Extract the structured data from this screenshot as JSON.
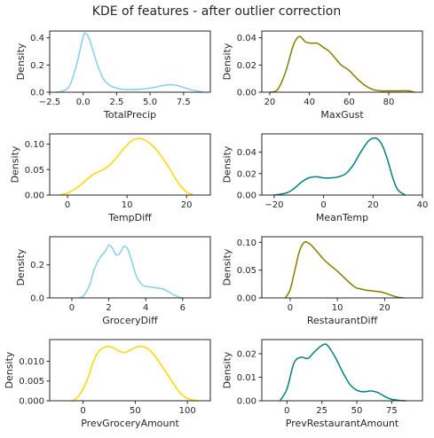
{
  "title": "KDE of features - after outlier correction",
  "colors": {
    "skyblue": "#87ceeb",
    "olive": "#808000",
    "gold": "#ffd700",
    "teal": "#008080",
    "axis": "#262626"
  },
  "chart_data": [
    {
      "type": "line",
      "xlabel": "TotalPrecip",
      "ylabel": "Density",
      "color": "#87ceeb",
      "xlim": [
        -2.5,
        9.5
      ],
      "ylim": [
        0,
        0.45
      ],
      "xticks": [
        -2.5,
        0.0,
        2.5,
        5.0,
        7.5
      ],
      "xticklabels": [
        "−2.5",
        "0.0",
        "2.5",
        "5.0",
        "7.5"
      ],
      "yticks": [
        0,
        0.2,
        0.4
      ],
      "yticklabels": [
        "0.0",
        "0.2",
        "0.4"
      ],
      "x": [
        -2.0,
        -1.5,
        -1.0,
        -0.5,
        0.0,
        0.2,
        0.5,
        1.0,
        1.5,
        2.0,
        2.5,
        3.0,
        4.0,
        5.0,
        6.0,
        6.5,
        7.0,
        8.0,
        9.0
      ],
      "y": [
        0.0,
        0.01,
        0.05,
        0.2,
        0.41,
        0.43,
        0.38,
        0.22,
        0.1,
        0.05,
        0.03,
        0.02,
        0.02,
        0.03,
        0.05,
        0.055,
        0.05,
        0.02,
        0.0
      ]
    },
    {
      "type": "line",
      "xlabel": "MaxGust",
      "ylabel": "Density",
      "color": "#808000",
      "xlim": [
        16,
        97
      ],
      "ylim": [
        0,
        0.045
      ],
      "xticks": [
        20,
        40,
        60,
        80
      ],
      "xticklabels": [
        "20",
        "40",
        "60",
        "80"
      ],
      "yticks": [
        0,
        0.02,
        0.04
      ],
      "yticklabels": [
        "0.00",
        "0.02",
        "0.04"
      ],
      "x": [
        20,
        24,
        28,
        32,
        35,
        38,
        41,
        44,
        47,
        50,
        53,
        56,
        60,
        64,
        68,
        72,
        76,
        80,
        85,
        90,
        93
      ],
      "y": [
        0.0,
        0.002,
        0.015,
        0.035,
        0.041,
        0.037,
        0.036,
        0.036,
        0.033,
        0.03,
        0.025,
        0.02,
        0.016,
        0.01,
        0.005,
        0.002,
        0.001,
        0.001,
        0.001,
        0.001,
        0.0
      ]
    },
    {
      "type": "line",
      "xlabel": "TempDiff",
      "ylabel": "Density",
      "color": "#ffd700",
      "xlim": [
        -3,
        24
      ],
      "ylim": [
        0,
        0.12
      ],
      "xticks": [
        0,
        10,
        20
      ],
      "xticklabels": [
        "0",
        "10",
        "20"
      ],
      "yticks": [
        0,
        0.05,
        0.1
      ],
      "yticklabels": [
        "0.00",
        "0.05",
        "0.10"
      ],
      "x": [
        -1,
        0,
        1,
        2,
        3,
        4,
        5,
        6,
        7,
        8,
        9,
        10,
        11,
        12,
        13,
        14,
        15,
        16,
        17,
        18,
        19,
        20,
        21
      ],
      "y": [
        0.001,
        0.004,
        0.01,
        0.018,
        0.028,
        0.038,
        0.045,
        0.05,
        0.058,
        0.07,
        0.085,
        0.098,
        0.108,
        0.111,
        0.108,
        0.1,
        0.088,
        0.072,
        0.055,
        0.035,
        0.018,
        0.006,
        0.001
      ]
    },
    {
      "type": "line",
      "xlabel": "MeanTemp",
      "ylabel": "Density",
      "color": "#008080",
      "xlim": [
        -25,
        40
      ],
      "ylim": [
        0,
        0.057
      ],
      "xticks": [
        -20,
        0,
        20,
        40
      ],
      "xticklabels": [
        "−20",
        "0",
        "20",
        "40"
      ],
      "yticks": [
        0,
        0.02,
        0.04
      ],
      "yticklabels": [
        "0.00",
        "0.02",
        "0.04"
      ],
      "x": [
        -20,
        -15,
        -12,
        -9,
        -6,
        -3,
        0,
        3,
        6,
        9,
        12,
        15,
        18,
        20,
        22,
        24,
        26,
        28,
        30,
        33
      ],
      "y": [
        0.0,
        0.002,
        0.006,
        0.012,
        0.016,
        0.017,
        0.016,
        0.016,
        0.017,
        0.02,
        0.028,
        0.04,
        0.05,
        0.053,
        0.052,
        0.045,
        0.032,
        0.016,
        0.005,
        0.0
      ]
    },
    {
      "type": "line",
      "xlabel": "GroceryDiff",
      "ylabel": "Density",
      "color": "#87ceeb",
      "xlim": [
        -1.2,
        7.5
      ],
      "ylim": [
        0,
        0.37
      ],
      "xticks": [
        0,
        2,
        4,
        6
      ],
      "xticklabels": [
        "0",
        "2",
        "4",
        "6"
      ],
      "yticks": [
        0,
        0.2
      ],
      "yticklabels": [
        "0.0",
        "0.2"
      ],
      "x": [
        0.4,
        0.6,
        0.8,
        1.0,
        1.2,
        1.5,
        1.8,
        2.0,
        2.2,
        2.4,
        2.6,
        2.8,
        3.0,
        3.2,
        3.5,
        3.8,
        4.0,
        4.3,
        4.6,
        4.9,
        5.2,
        5.5,
        5.8,
        6.0
      ],
      "y": [
        0.0,
        0.01,
        0.04,
        0.09,
        0.17,
        0.24,
        0.28,
        0.32,
        0.3,
        0.26,
        0.27,
        0.31,
        0.3,
        0.24,
        0.13,
        0.08,
        0.07,
        0.065,
        0.06,
        0.055,
        0.04,
        0.02,
        0.005,
        0.0
      ]
    },
    {
      "type": "line",
      "xlabel": "RestaurantDiff",
      "ylabel": "Density",
      "color": "#808000",
      "xlim": [
        -6,
        28
      ],
      "ylim": [
        0,
        0.11
      ],
      "xticks": [
        0,
        10,
        20
      ],
      "xticklabels": [
        "0",
        "10",
        "20"
      ],
      "yticks": [
        0,
        0.05,
        0.1
      ],
      "yticklabels": [
        "0.00",
        "0.05",
        "0.10"
      ],
      "x": [
        -1,
        0,
        1,
        2,
        3,
        4,
        5,
        6,
        7,
        8,
        9,
        10,
        11,
        12,
        13,
        14,
        15,
        16,
        17,
        18,
        19,
        20,
        21,
        22,
        23,
        24
      ],
      "y": [
        0.0,
        0.015,
        0.05,
        0.085,
        0.1,
        0.098,
        0.09,
        0.08,
        0.07,
        0.062,
        0.055,
        0.048,
        0.04,
        0.032,
        0.024,
        0.018,
        0.016,
        0.014,
        0.013,
        0.012,
        0.011,
        0.009,
        0.006,
        0.003,
        0.001,
        0.0
      ]
    },
    {
      "type": "line",
      "xlabel": "PrevGroceryAmount",
      "ylabel": "Density",
      "color": "#ffd700",
      "xlim": [
        -32,
        122
      ],
      "ylim": [
        0,
        0.0155
      ],
      "xticks": [
        0,
        50,
        100
      ],
      "xticklabels": [
        "0",
        "50",
        "100"
      ],
      "yticks": [
        0,
        0.005,
        0.01
      ],
      "yticklabels": [
        "0.000",
        "0.005",
        "0.010"
      ],
      "x": [
        -10,
        -5,
        0,
        5,
        10,
        15,
        20,
        25,
        30,
        35,
        40,
        45,
        50,
        55,
        60,
        65,
        70,
        75,
        80,
        85,
        90,
        95,
        100,
        105,
        110
      ],
      "y": [
        0.0,
        0.001,
        0.003,
        0.006,
        0.01,
        0.0125,
        0.0135,
        0.0138,
        0.0133,
        0.0125,
        0.0122,
        0.0128,
        0.0135,
        0.0138,
        0.0135,
        0.0125,
        0.011,
        0.009,
        0.007,
        0.005,
        0.003,
        0.0015,
        0.0006,
        0.0002,
        0.0
      ]
    },
    {
      "type": "line",
      "xlabel": "PrevRestaurantAmount",
      "ylabel": "Density",
      "color": "#008080",
      "xlim": [
        -18,
        97
      ],
      "ylim": [
        0,
        0.026
      ],
      "xticks": [
        0,
        25,
        50,
        75
      ],
      "xticklabels": [
        "0",
        "25",
        "50",
        "75"
      ],
      "yticks": [
        0,
        0.01,
        0.02
      ],
      "yticklabels": [
        "0.00",
        "0.01",
        "0.02"
      ],
      "x": [
        -5,
        0,
        5,
        10,
        15,
        20,
        25,
        28,
        31,
        35,
        40,
        45,
        50,
        55,
        60,
        65,
        70,
        75,
        80,
        85
      ],
      "y": [
        0.0,
        0.005,
        0.016,
        0.0185,
        0.018,
        0.021,
        0.0235,
        0.024,
        0.022,
        0.018,
        0.012,
        0.007,
        0.0045,
        0.0038,
        0.0042,
        0.0035,
        0.0018,
        0.0006,
        0.0002,
        0.0
      ]
    }
  ]
}
